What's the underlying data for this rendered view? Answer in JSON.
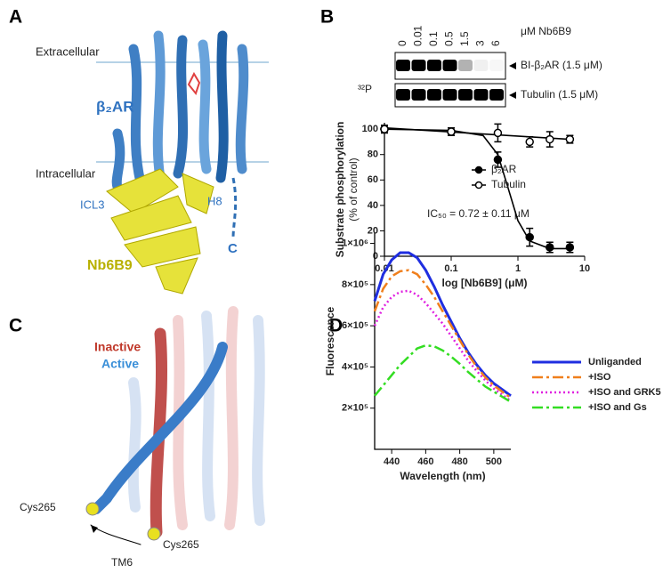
{
  "panels": {
    "A": {
      "label": "A",
      "extracellular": "Extracellular",
      "receptor": "β₂AR",
      "intracellular": "Intracellular",
      "icl3": "ICL3",
      "h8": "H8",
      "c_terminus": "C",
      "nanobody": "Nb6B9"
    },
    "B": {
      "label": "B",
      "lanes": [
        "0",
        "0.01",
        "0.1",
        "0.5",
        "1.5",
        "3",
        "6"
      ],
      "lane_unit": "μM Nb6B9",
      "isotope": "³²P",
      "row_labels": [
        "BI-β₂AR (1.5 μM)",
        "Tubulin (1.5 μM)"
      ]
    },
    "C": {
      "label": "C",
      "inactive": "Inactive",
      "active": "Active",
      "residue_active": "Cys265",
      "residue_inactive": "Cys265",
      "helix": "TM6"
    },
    "D": {
      "label": "D"
    }
  },
  "chart_data": [
    {
      "type": "line",
      "xlabel": "log [Nb6B9] (μM)",
      "ylabel": "Substrate phosphorylation",
      "ylabel_sub": "(% of control)",
      "annotation": "IC₅₀ = 0.72 ± 0.11 μM",
      "xscale": "log",
      "xlim": [
        0.01,
        10
      ],
      "xticks": [
        0.01,
        0.1,
        1,
        10
      ],
      "ylim": [
        0,
        105
      ],
      "yticks": [
        0,
        20,
        40,
        60,
        80,
        100
      ],
      "legend": "right",
      "x": [
        0.01,
        0.1,
        0.5,
        1.5,
        3,
        6
      ],
      "series": [
        {
          "name": "β₂AR",
          "color": "#000000",
          "marker": "filled",
          "values": [
            100,
            98,
            76,
            15,
            7,
            7
          ],
          "errors": [
            3,
            3,
            6,
            7,
            4,
            4
          ],
          "fit": {
            "x": [
              0.01,
              0.1,
              0.3,
              0.5,
              0.7,
              1,
              1.5,
              3,
              6
            ],
            "values": [
              100,
              99,
              95,
              80,
              55,
              28,
              12,
              6,
              6
            ]
          }
        },
        {
          "name": "Tubulin",
          "color": "#000000",
          "marker": "open",
          "values": [
            100,
            98,
            97,
            90,
            92,
            92
          ],
          "errors": [
            3,
            3,
            7,
            4,
            6,
            3
          ],
          "fit": {
            "x": [
              0.01,
              6
            ],
            "values": [
              101,
              92
            ]
          }
        }
      ]
    },
    {
      "type": "line",
      "xlabel": "Wavelength (nm)",
      "ylabel": "Fluorescence",
      "legend": "upper right",
      "xlim": [
        430,
        510
      ],
      "xticks": [
        440,
        460,
        480,
        500
      ],
      "ylim": [
        0,
        1050000
      ],
      "yticks": [
        {
          "value": 200000,
          "label": "2×10⁵"
        },
        {
          "value": 400000,
          "label": "4×10⁵"
        },
        {
          "value": 600000,
          "label": "6×10⁵"
        },
        {
          "value": 800000,
          "label": "8×10⁵"
        },
        {
          "value": 1000000,
          "label": "1×10⁶"
        }
      ],
      "x": [
        430,
        435,
        440,
        445,
        450,
        455,
        460,
        465,
        470,
        475,
        480,
        485,
        490,
        495,
        500,
        505,
        510
      ],
      "series": [
        {
          "name": "Unliganded",
          "color": "#1f2ee0",
          "style": "solid",
          "values": [
            720000,
            850000,
            920000,
            955000,
            955000,
            930000,
            870000,
            790000,
            700000,
            620000,
            540000,
            470000,
            410000,
            360000,
            320000,
            290000,
            260000
          ]
        },
        {
          "name": "+ISO",
          "color": "#f07f1c",
          "style": "dashdot",
          "values": [
            670000,
            780000,
            840000,
            865000,
            870000,
            850000,
            800000,
            740000,
            670000,
            600000,
            530000,
            460000,
            400000,
            350000,
            310000,
            280000,
            250000
          ]
        },
        {
          "name": "+ISO and GRK5",
          "color": "#e020e0",
          "style": "dotted",
          "values": [
            600000,
            690000,
            740000,
            765000,
            770000,
            750000,
            710000,
            660000,
            610000,
            550000,
            490000,
            430000,
            380000,
            335000,
            295000,
            265000,
            235000
          ]
        },
        {
          "name": "+ISO and Gs",
          "color": "#33dd22",
          "style": "dashdot",
          "values": [
            260000,
            310000,
            360000,
            410000,
            450000,
            490000,
            505000,
            500000,
            480000,
            450000,
            415000,
            375000,
            340000,
            305000,
            280000,
            255000,
            230000
          ]
        }
      ]
    }
  ]
}
